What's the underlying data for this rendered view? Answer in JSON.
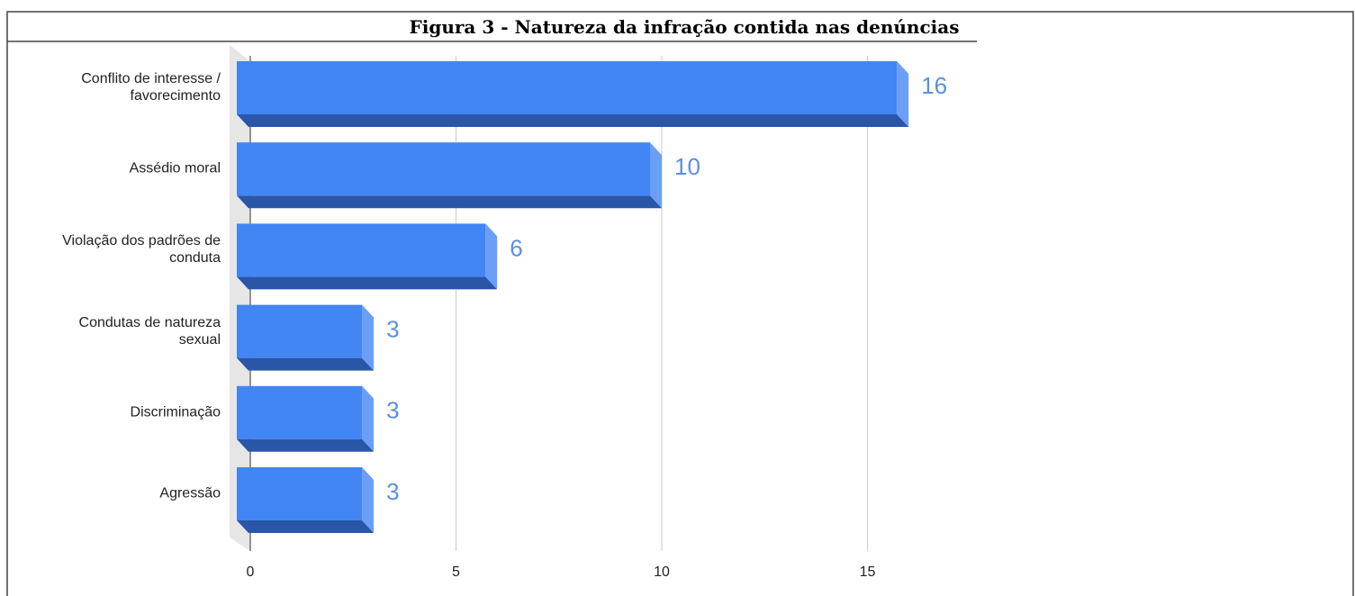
{
  "chart_data": {
    "type": "bar",
    "orientation": "horizontal",
    "title": "Figura 3 - Natureza da infração contida nas denúncias",
    "categories": [
      "Conflito de interesse / favorecimento",
      "Assédio moral",
      "Violação dos padrões de conduta",
      "Condutas de natureza sexual",
      "Discriminação",
      "Agressão"
    ],
    "values": [
      16,
      10,
      6,
      3,
      3,
      3
    ],
    "color": "#4285f4",
    "xlim": [
      0,
      20
    ],
    "xticks": [
      0,
      5,
      10,
      15
    ],
    "grid": true
  }
}
